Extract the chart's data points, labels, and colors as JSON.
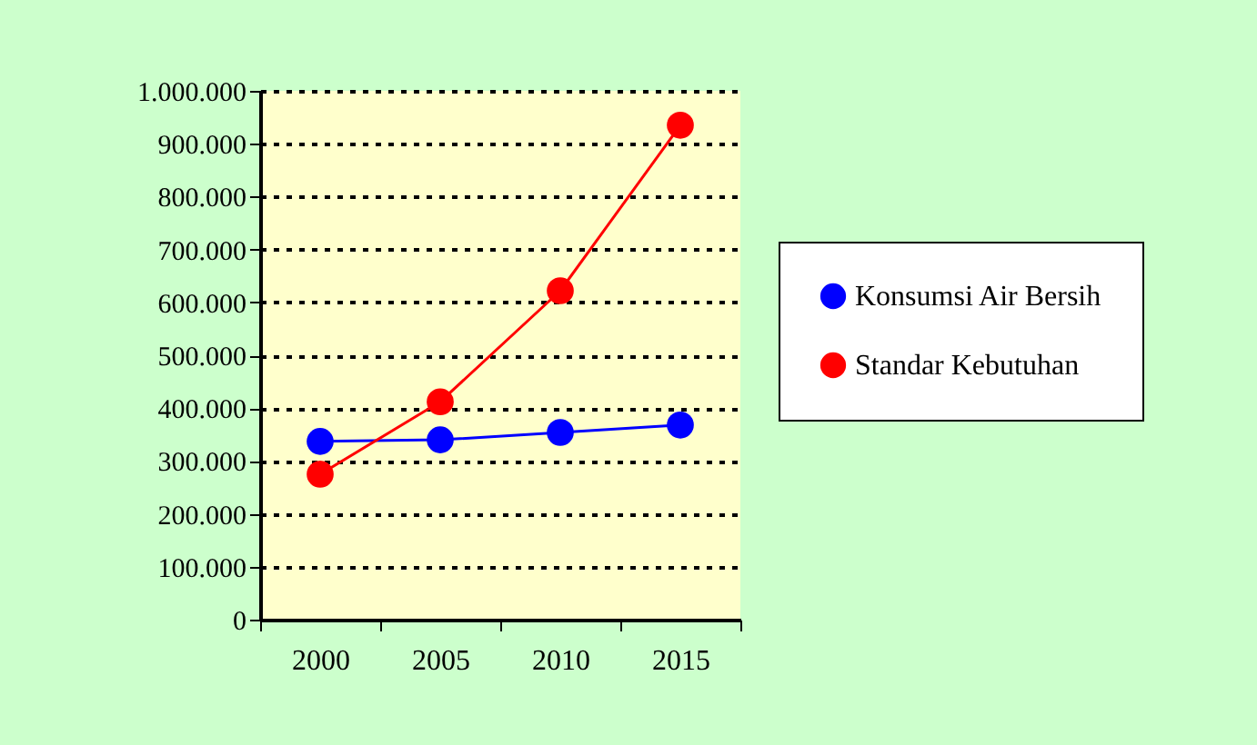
{
  "chart_data": {
    "type": "line",
    "categories": [
      "2000",
      "2005",
      "2010",
      "2015"
    ],
    "series": [
      {
        "name": "Konsumsi Air Bersih",
        "color": "#0000ff",
        "values": [
          337000,
          340000,
          354000,
          368000
        ]
      },
      {
        "name": "Standar Kebutuhan",
        "color": "#ff0000",
        "values": [
          275000,
          412000,
          622000,
          935000
        ]
      }
    ],
    "ylim": [
      0,
      1000000
    ],
    "yticks": [
      {
        "value": 0,
        "label": "0"
      },
      {
        "value": 100000,
        "label": "100.000"
      },
      {
        "value": 200000,
        "label": "200.000"
      },
      {
        "value": 300000,
        "label": "300.000"
      },
      {
        "value": 400000,
        "label": "400.000"
      },
      {
        "value": 500000,
        "label": "500.000"
      },
      {
        "value": 600000,
        "label": "600.000"
      },
      {
        "value": 700000,
        "label": "700.000"
      },
      {
        "value": 800000,
        "label": "800.000"
      },
      {
        "value": 900000,
        "label": "900.000"
      },
      {
        "value": 1000000,
        "label": "1.000.000"
      }
    ],
    "grid": "y",
    "legend": "right",
    "marker": "circle",
    "line_style": "solid"
  }
}
